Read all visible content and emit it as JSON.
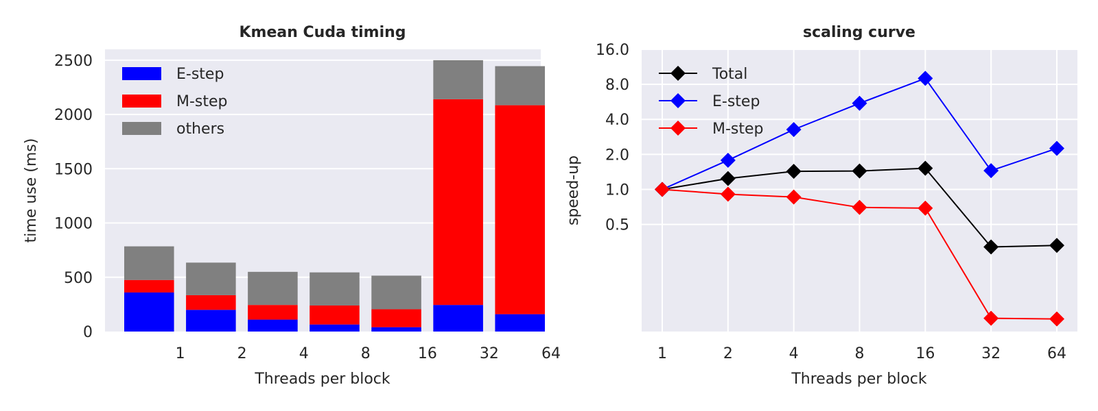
{
  "chart_data": [
    {
      "type": "bar",
      "stacked": true,
      "title": "Kmean Cuda timing",
      "xlabel": "Threads per block",
      "ylabel": "time use (ms)",
      "categories": [
        "1",
        "2",
        "4",
        "8",
        "16",
        "32",
        "64"
      ],
      "ylim": [
        0,
        2600
      ],
      "yticks": [
        0,
        500,
        1000,
        1500,
        2000,
        2500
      ],
      "grid": true,
      "legend_position": "top-left",
      "series": [
        {
          "name": "E-step",
          "color": "#0000ff",
          "values": [
            360,
            200,
            110,
            65,
            40,
            245,
            160
          ]
        },
        {
          "name": "M-step",
          "color": "#ff0000",
          "values": [
            115,
            135,
            135,
            175,
            165,
            1895,
            1925
          ]
        },
        {
          "name": "others",
          "color": "#808080",
          "values": [
            310,
            300,
            305,
            305,
            310,
            360,
            360
          ]
        }
      ]
    },
    {
      "type": "line",
      "title": "scaling curve",
      "xlabel": "Threads per block",
      "ylabel": "speed-up",
      "categories": [
        "1",
        "2",
        "4",
        "8",
        "16",
        "32",
        "64"
      ],
      "yscale": "log2",
      "ylim": [
        0.06,
        16
      ],
      "yticks": [
        "16.0",
        "8.0",
        "4.0",
        "2.0",
        "1.0",
        "0.5"
      ],
      "grid": true,
      "legend_position": "top-left",
      "series": [
        {
          "name": "Total",
          "color": "#000000",
          "marker": "diamond",
          "values": [
            1.0,
            1.24,
            1.43,
            1.44,
            1.52,
            0.32,
            0.33
          ]
        },
        {
          "name": "E-step",
          "color": "#0000ff",
          "marker": "diamond",
          "values": [
            1.0,
            1.78,
            3.27,
            5.5,
            9.0,
            1.45,
            2.25
          ]
        },
        {
          "name": "M-step",
          "color": "#ff0000",
          "marker": "diamond",
          "values": [
            1.0,
            0.91,
            0.86,
            0.7,
            0.69,
            0.078,
            0.077
          ]
        }
      ]
    }
  ]
}
